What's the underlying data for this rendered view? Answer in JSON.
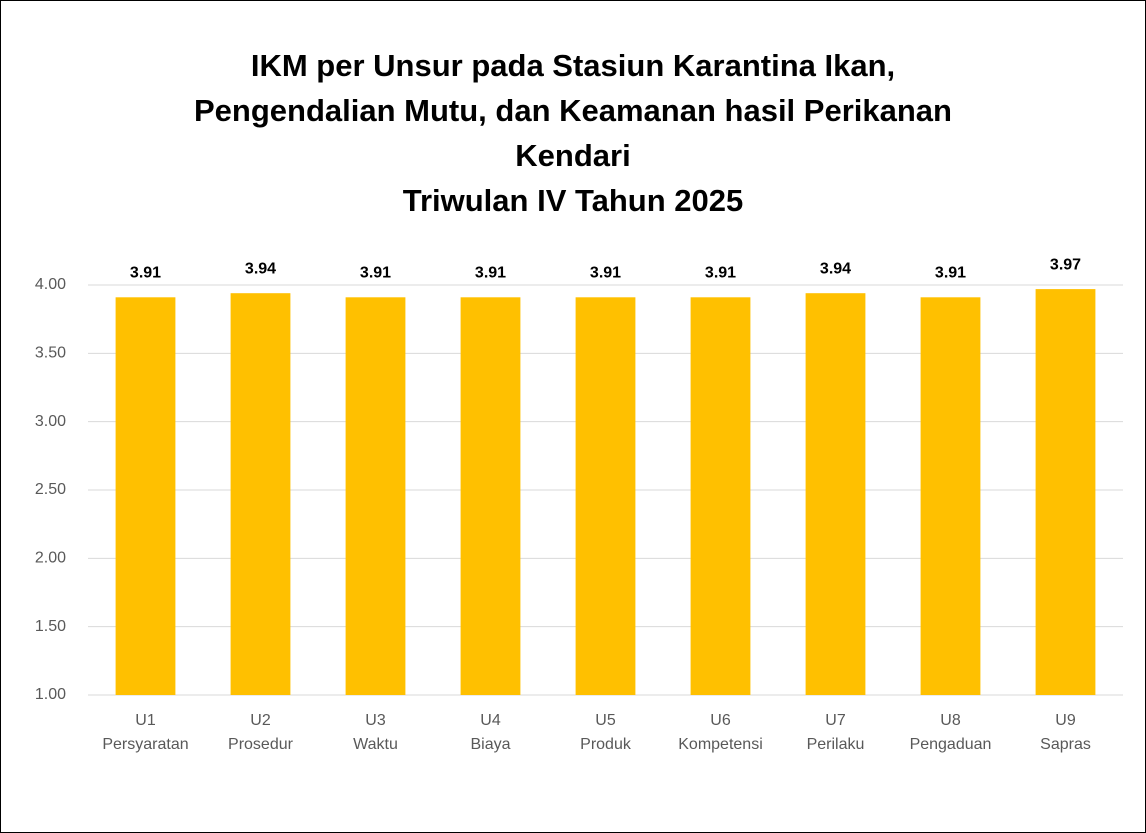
{
  "chart_data": {
    "type": "bar",
    "title": "IKM per Unsur pada Stasiun Karantina Ikan,\nPengendalian Mutu, dan Keamanan hasil Perikanan\nKendari\nTriwulan IV Tahun 2025",
    "categories": [
      "U1\nPersyaratan",
      "U2\nProsedur",
      "U3\nWaktu",
      "U4\nBiaya",
      "U5\nProduk",
      "U6\nKompetensi",
      "U7\nPerilaku",
      "U8\nPengaduan",
      "U9\nSapras"
    ],
    "values": [
      3.91,
      3.94,
      3.91,
      3.91,
      3.91,
      3.91,
      3.94,
      3.91,
      3.97
    ],
    "color": "#ffc000",
    "ylim": [
      1,
      4
    ],
    "yticks": [
      {
        "value": 1,
        "label": "1.00"
      },
      {
        "value": 1.5,
        "label": "1.50"
      },
      {
        "value": 2,
        "label": "2.00"
      },
      {
        "value": 2.5,
        "label": "2.50"
      },
      {
        "value": 3,
        "label": "3.00"
      },
      {
        "value": 3.5,
        "label": "3.50"
      },
      {
        "value": 4,
        "label": "4.00"
      }
    ],
    "grid": true
  }
}
